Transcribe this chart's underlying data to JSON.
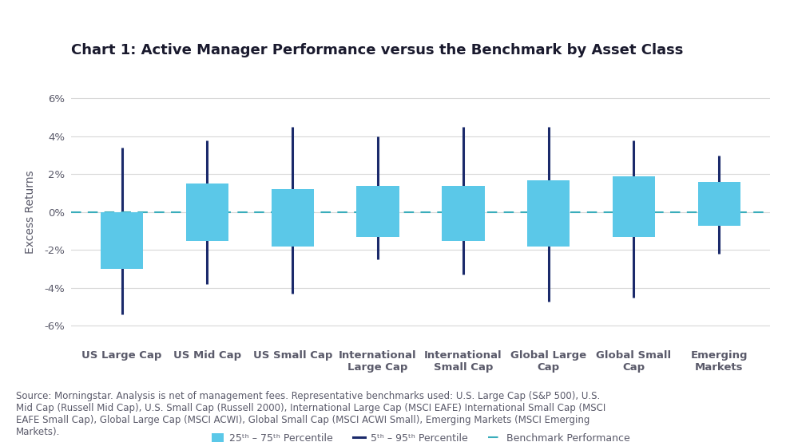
{
  "title": "Chart 1: Active Manager Performance versus the Benchmark by Asset Class",
  "ylabel": "Excess Returns",
  "categories": [
    "US Large Cap",
    "US Mid Cap",
    "US Small Cap",
    "International\nLarge Cap",
    "International\nSmall Cap",
    "Global Large\nCap",
    "Global Small\nCap",
    "Emerging\nMarkets"
  ],
  "box_color": "#5BC8E8",
  "whisker_color": "#1B2A6B",
  "benchmark_color": "#3AADBB",
  "ylim": [
    -0.07,
    0.07
  ],
  "yticks": [
    -0.06,
    -0.04,
    -0.02,
    0.0,
    0.02,
    0.04,
    0.06
  ],
  "ytick_labels": [
    "-6%",
    "-4%",
    "-2%",
    "0%",
    "2%",
    "4%",
    "6%"
  ],
  "background_color": "#FFFFFF",
  "grid_color": "#D8D8D8",
  "boxes": [
    {
      "q1": -0.03,
      "q3": 0.0,
      "p5": -0.054,
      "p95": 0.034
    },
    {
      "q1": -0.015,
      "q3": 0.015,
      "p5": -0.038,
      "p95": 0.038
    },
    {
      "q1": -0.018,
      "q3": 0.012,
      "p5": -0.043,
      "p95": 0.045
    },
    {
      "q1": -0.013,
      "q3": 0.014,
      "p5": -0.025,
      "p95": 0.04
    },
    {
      "q1": -0.015,
      "q3": 0.014,
      "p5": -0.033,
      "p95": 0.045
    },
    {
      "q1": -0.018,
      "q3": 0.017,
      "p5": -0.047,
      "p95": 0.045
    },
    {
      "q1": -0.013,
      "q3": 0.019,
      "p5": -0.045,
      "p95": 0.038
    },
    {
      "q1": -0.007,
      "q3": 0.016,
      "p5": -0.022,
      "p95": 0.03
    }
  ],
  "source_text": "Source: Morningstar. Analysis is net of management fees. Representative benchmarks used: U.S. Large Cap (S&P 500), U.S.\nMid Cap (Russell Mid Cap), U.S. Small Cap (Russell 2000), International Large Cap (MSCI EAFE) International Small Cap (MSCI\nEAFE Small Cap), Global Large Cap (MSCI ACWI), Global Small Cap (MSCI ACWI Small), Emerging Markets (MSCI Emerging\nMarkets).",
  "title_fontsize": 13,
  "axis_fontsize": 10,
  "tick_fontsize": 9.5,
  "legend_fontsize": 9,
  "source_fontsize": 8.5,
  "box_width": 0.5,
  "title_color": "#1A1A2E",
  "text_color": "#5A5A6A",
  "label_fontsize": 9.5,
  "label_fontweight": "bold"
}
